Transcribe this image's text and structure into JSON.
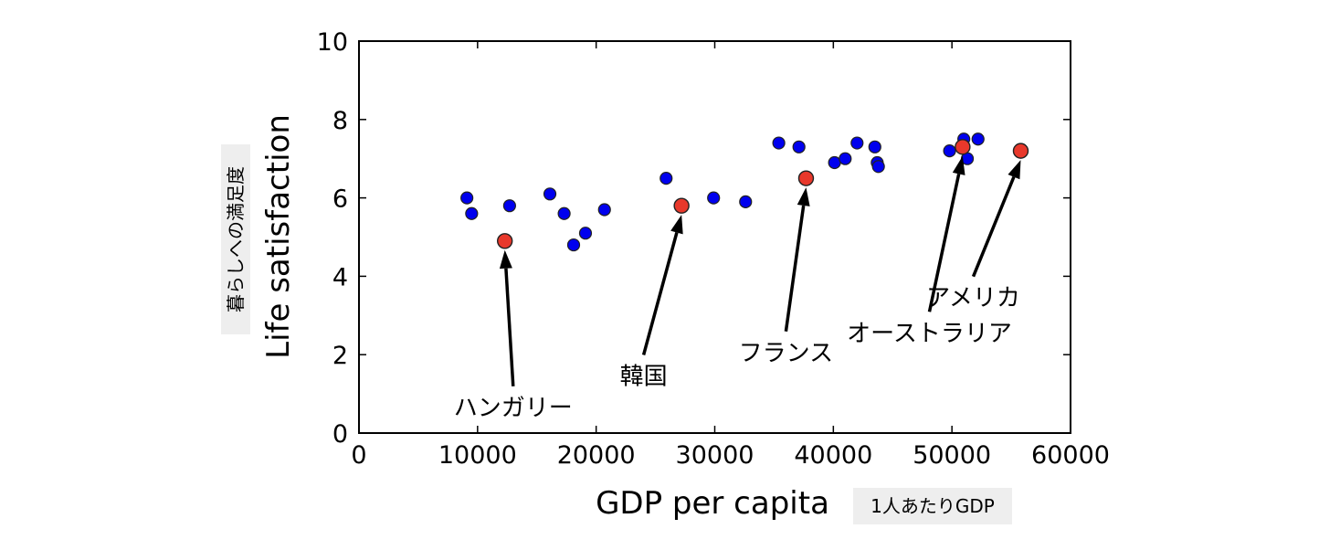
{
  "chart_data": {
    "type": "scatter",
    "xlabel": "GDP per capita",
    "xlabel_note": "1人あたりGDP",
    "ylabel": "Life satisfaction",
    "ylabel_note": "暮らしへの満足度",
    "xlim": [
      0,
      60000
    ],
    "ylim": [
      0,
      10
    ],
    "xticks": [
      "0",
      "10000",
      "20000",
      "30000",
      "40000",
      "50000",
      "60000"
    ],
    "yticks": [
      "0",
      "2",
      "4",
      "6",
      "8",
      "10"
    ],
    "grid": false,
    "colors": {
      "base": "#0000ee",
      "highlight": "#e8382b",
      "outline": "#222222"
    },
    "points": [
      {
        "x": 9100,
        "y": 6.0
      },
      {
        "x": 9500,
        "y": 5.6
      },
      {
        "x": 12700,
        "y": 5.8
      },
      {
        "x": 16100,
        "y": 6.1
      },
      {
        "x": 17300,
        "y": 5.6
      },
      {
        "x": 18100,
        "y": 4.8
      },
      {
        "x": 19100,
        "y": 5.1
      },
      {
        "x": 20700,
        "y": 5.7
      },
      {
        "x": 25900,
        "y": 6.5
      },
      {
        "x": 29900,
        "y": 6.0
      },
      {
        "x": 32600,
        "y": 5.9
      },
      {
        "x": 35400,
        "y": 7.4
      },
      {
        "x": 37100,
        "y": 7.3
      },
      {
        "x": 40100,
        "y": 6.9
      },
      {
        "x": 41000,
        "y": 7.0
      },
      {
        "x": 42000,
        "y": 7.4
      },
      {
        "x": 43500,
        "y": 7.3
      },
      {
        "x": 43700,
        "y": 6.9
      },
      {
        "x": 43800,
        "y": 6.8
      },
      {
        "x": 49800,
        "y": 7.2
      },
      {
        "x": 51000,
        "y": 7.5
      },
      {
        "x": 51300,
        "y": 7.0
      },
      {
        "x": 52200,
        "y": 7.5
      }
    ],
    "highlighted": [
      {
        "name": "ハンガリー",
        "x": 12300,
        "y": 4.9,
        "label_x": 13000,
        "label_y": 1.1
      },
      {
        "name": "韓国",
        "x": 27200,
        "y": 5.8,
        "label_x": 24000,
        "label_y": 1.9
      },
      {
        "name": "フランス",
        "x": 37700,
        "y": 6.5,
        "label_x": 36000,
        "label_y": 2.5
      },
      {
        "name": "オーストラリア",
        "x": 50900,
        "y": 7.3,
        "label_x": 48100,
        "label_y": 3.0
      },
      {
        "name": "アメリカ",
        "x": 55800,
        "y": 7.2,
        "label_x": 51800,
        "label_y": 3.9
      }
    ]
  }
}
